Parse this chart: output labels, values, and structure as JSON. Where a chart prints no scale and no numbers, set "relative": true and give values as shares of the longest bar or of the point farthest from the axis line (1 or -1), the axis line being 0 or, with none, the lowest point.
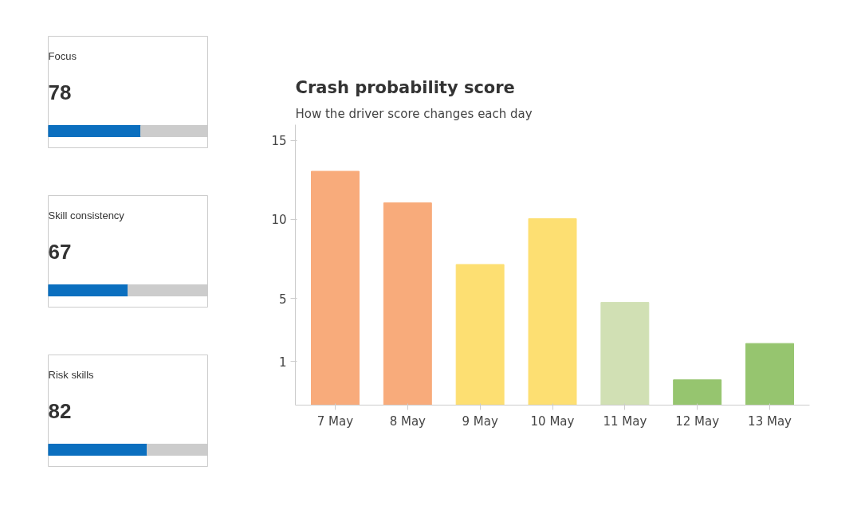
{
  "chart_data": [
    {
      "type": "bar",
      "orientation": "horizontal",
      "stacked": true,
      "relative": true,
      "title": "Focus",
      "annotations": [
        "78"
      ],
      "categories": [
        null
      ],
      "series": [
        {
          "color": "#0b6fbf",
          "values": [
            0.58
          ]
        },
        {
          "color": "#cccccc",
          "values": [
            0.42
          ]
        }
      ]
    },
    {
      "type": "bar",
      "orientation": "horizontal",
      "stacked": true,
      "relative": true,
      "title": "Skill consistency",
      "annotations": [
        "67"
      ],
      "categories": [
        null
      ],
      "series": [
        {
          "color": "#0b6fbf",
          "values": [
            0.5
          ]
        },
        {
          "color": "#cccccc",
          "values": [
            0.5
          ]
        }
      ]
    },
    {
      "type": "bar",
      "orientation": "horizontal",
      "stacked": true,
      "relative": true,
      "title": "Risk skills",
      "annotations": [
        "82"
      ],
      "categories": [
        null
      ],
      "series": [
        {
          "color": "#0b6fbf",
          "values": [
            0.62
          ]
        },
        {
          "color": "#cccccc",
          "values": [
            0.38
          ]
        }
      ]
    },
    {
      "type": "bar",
      "title": "Crash probability score",
      "subtitle": "How the driver score changes each day",
      "categories": [
        "7 May",
        "8 May",
        "9 May",
        "10 May",
        "11 May",
        "12 May",
        "13 May"
      ],
      "values": [
        14.8,
        12.8,
        8.9,
        11.8,
        6.5,
        1.6,
        3.9
      ],
      "base": [
        -1.75,
        -1.75,
        -1.75,
        -1.75,
        -1.75,
        -1.75,
        -1.75
      ],
      "colors": [
        "#f8ab7b",
        "#f8ab7b",
        "#fddf72",
        "#fddf72",
        "#d1e0b4",
        "#96c56f",
        "#96c56f"
      ],
      "ylim": [
        -1.75,
        16.0
      ],
      "yticks": [
        1,
        5,
        10,
        15
      ]
    }
  ]
}
